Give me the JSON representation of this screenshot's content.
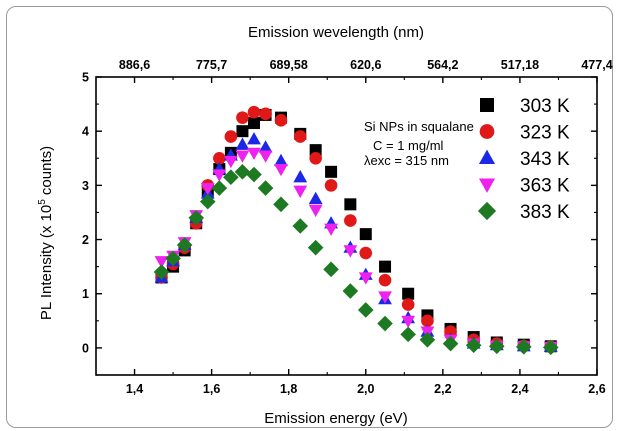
{
  "chart_data": {
    "type": "scatter",
    "xlabel": "Emission energy (eV)",
    "ylabel_parts": [
      "PL Intensity (x 10",
      "5",
      " counts)"
    ],
    "top_axis_label": "Emission wevelength (nm)",
    "xlim": [
      1.3,
      2.6
    ],
    "ylim": [
      -0.5,
      5
    ],
    "x_ticks": [
      "1,4",
      "1,6",
      "1,8",
      "2,0",
      "2,2",
      "2,4",
      "2,6"
    ],
    "x_tick_values": [
      1.4,
      1.6,
      1.8,
      2.0,
      2.2,
      2.4,
      2.6
    ],
    "y_ticks": [
      "0",
      "1",
      "2",
      "3",
      "4",
      "5"
    ],
    "y_tick_values": [
      0,
      1,
      2,
      3,
      4,
      5
    ],
    "top_ticks": [
      "886,6",
      "775,7",
      "689,58",
      "620,6",
      "564,2",
      "517,18",
      "477,4"
    ],
    "annotations": {
      "sample": "Si NPs in squalane",
      "concentration": "C = 1 mg/ml",
      "excitation": "λexc = 315 nm"
    },
    "grid": false,
    "legend_position": "right",
    "series": [
      {
        "name": "303 K",
        "marker": "square",
        "color": "#000000",
        "x": [
          1.47,
          1.5,
          1.53,
          1.56,
          1.59,
          1.62,
          1.65,
          1.68,
          1.71,
          1.74,
          1.78,
          1.83,
          1.87,
          1.91,
          1.96,
          2.0,
          2.05,
          2.11,
          2.16,
          2.22,
          2.28,
          2.34,
          2.41,
          2.48
        ],
        "y": [
          1.3,
          1.5,
          1.8,
          2.3,
          2.9,
          3.3,
          3.6,
          4.0,
          4.15,
          4.3,
          4.25,
          3.95,
          3.65,
          3.25,
          2.65,
          2.1,
          1.5,
          1.0,
          0.6,
          0.35,
          0.2,
          0.1,
          0.06,
          0.03
        ]
      },
      {
        "name": "323 K",
        "marker": "circle",
        "color": "#e01818",
        "x": [
          1.47,
          1.5,
          1.53,
          1.56,
          1.59,
          1.62,
          1.65,
          1.68,
          1.71,
          1.74,
          1.78,
          1.83,
          1.87,
          1.91,
          1.96,
          2.0,
          2.05,
          2.11,
          2.16,
          2.22,
          2.28,
          2.34,
          2.41,
          2.48
        ],
        "y": [
          1.3,
          1.55,
          1.85,
          2.3,
          3.0,
          3.5,
          3.9,
          4.25,
          4.35,
          4.32,
          4.2,
          3.9,
          3.5,
          3.0,
          2.35,
          1.75,
          1.25,
          0.8,
          0.5,
          0.3,
          0.15,
          0.08,
          0.04,
          0.02
        ]
      },
      {
        "name": "343 K",
        "marker": "triangle-up",
        "color": "#1c28e6",
        "x": [
          1.47,
          1.5,
          1.53,
          1.56,
          1.59,
          1.62,
          1.65,
          1.68,
          1.71,
          1.74,
          1.78,
          1.83,
          1.87,
          1.91,
          1.96,
          2.0,
          2.05,
          2.11,
          2.16,
          2.22,
          2.28,
          2.34,
          2.41,
          2.48
        ],
        "y": [
          1.3,
          1.6,
          1.9,
          2.4,
          2.85,
          3.3,
          3.55,
          3.75,
          3.85,
          3.7,
          3.45,
          3.15,
          2.75,
          2.3,
          1.85,
          1.35,
          0.9,
          0.55,
          0.3,
          0.15,
          0.08,
          0.05,
          0.03,
          0.02
        ]
      },
      {
        "name": "363 K",
        "marker": "triangle-down",
        "color": "#ee22ee",
        "x": [
          1.47,
          1.5,
          1.53,
          1.56,
          1.59,
          1.62,
          1.65,
          1.68,
          1.71,
          1.74,
          1.78,
          1.83,
          1.87,
          1.91,
          1.96,
          2.0,
          2.05,
          2.11,
          2.16,
          2.22,
          2.28,
          2.34,
          2.41,
          2.48
        ],
        "y": [
          1.6,
          1.7,
          1.95,
          2.45,
          2.95,
          3.2,
          3.45,
          3.55,
          3.6,
          3.55,
          3.3,
          2.9,
          2.55,
          2.2,
          1.8,
          1.3,
          0.95,
          0.5,
          0.3,
          0.15,
          0.08,
          0.04,
          0.03,
          0.02
        ]
      },
      {
        "name": "383 K",
        "marker": "diamond",
        "color": "#1e7a22",
        "x": [
          1.47,
          1.5,
          1.53,
          1.56,
          1.59,
          1.62,
          1.65,
          1.68,
          1.71,
          1.74,
          1.78,
          1.83,
          1.87,
          1.91,
          1.96,
          2.0,
          2.05,
          2.11,
          2.16,
          2.22,
          2.28,
          2.34,
          2.41,
          2.48
        ],
        "y": [
          1.4,
          1.65,
          1.9,
          2.4,
          2.7,
          2.95,
          3.15,
          3.25,
          3.2,
          2.95,
          2.65,
          2.25,
          1.85,
          1.45,
          1.05,
          0.7,
          0.45,
          0.25,
          0.15,
          0.08,
          0.05,
          0.03,
          0.02,
          0.01
        ]
      }
    ]
  }
}
